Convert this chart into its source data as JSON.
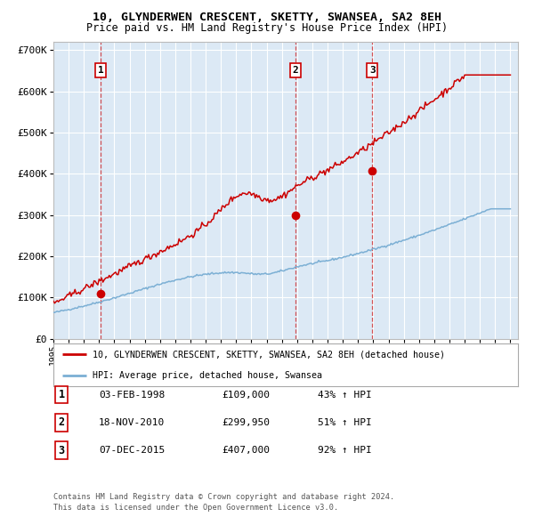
{
  "title": "10, GLYNDERWEN CRESCENT, SKETTY, SWANSEA, SA2 8EH",
  "subtitle": "Price paid vs. HM Land Registry's House Price Index (HPI)",
  "hpi_label": "HPI: Average price, detached house, Swansea",
  "property_label": "10, GLYNDERWEN CRESCENT, SKETTY, SWANSEA, SA2 8EH (detached house)",
  "red_color": "#cc0000",
  "blue_color": "#7bafd4",
  "bg_color": "#dce9f5",
  "grid_color": "#ffffff",
  "purchases": [
    {
      "date_num": 1998.09,
      "price": 109000,
      "label": "1",
      "date_str": "03-FEB-1998",
      "pct": "43%"
    },
    {
      "date_num": 2010.88,
      "price": 299950,
      "label": "2",
      "date_str": "18-NOV-2010",
      "pct": "51%"
    },
    {
      "date_num": 2015.93,
      "price": 407000,
      "label": "3",
      "date_str": "07-DEC-2015",
      "pct": "92%"
    }
  ],
  "footnote1": "Contains HM Land Registry data © Crown copyright and database right 2024.",
  "footnote2": "This data is licensed under the Open Government Licence v3.0.",
  "xlim": [
    1995.0,
    2025.5
  ],
  "ylim": [
    0,
    720000
  ],
  "yticks": [
    0,
    100000,
    200000,
    300000,
    400000,
    500000,
    600000,
    700000
  ],
  "ytick_labels": [
    "£0",
    "£100K",
    "£200K",
    "£300K",
    "£400K",
    "£500K",
    "£600K",
    "£700K"
  ]
}
